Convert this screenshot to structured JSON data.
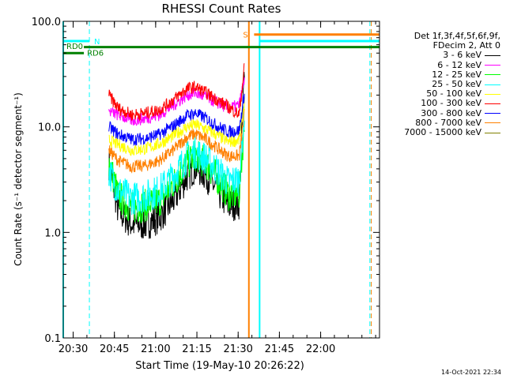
{
  "chart_data": {
    "type": "line",
    "title": "RHESSI Count Rates",
    "xlabel": "Start Time (19-May-10 20:26:22)",
    "ylabel": "Count Rate (s⁻¹ detector segment⁻¹)",
    "y_scale": "log",
    "ylim": [
      0.1,
      100.0
    ],
    "y_ticks": [
      "0.1",
      "1.0",
      "10.0",
      "100.0"
    ],
    "x_ticks": [
      "20:30",
      "20:45",
      "21:00",
      "21:15",
      "21:30",
      "21:45",
      "22:00"
    ],
    "x_unit": "minutes since 20:26:22",
    "xlim": [
      0,
      115
    ],
    "x_tick_values": [
      3.6,
      18.6,
      33.6,
      48.6,
      63.6,
      78.6,
      93.6
    ],
    "legend_header": [
      "Det 1f,3f,4f,5f,6f,9f,",
      "FDecim 2, Att 0"
    ],
    "legend_position": "right",
    "data_start_minute": 16.6,
    "data_end_minute": 66.0,
    "series": [
      {
        "name": "3 - 6 keV",
        "color": "#000000",
        "points": [
          [
            16.6,
            4.5
          ],
          [
            20,
            1.6
          ],
          [
            25,
            1.2
          ],
          [
            30,
            1.2
          ],
          [
            35,
            1.4
          ],
          [
            40,
            2.0
          ],
          [
            45,
            3.4
          ],
          [
            48,
            4.2
          ],
          [
            52,
            3.5
          ],
          [
            56,
            2.5
          ],
          [
            60,
            1.8
          ],
          [
            64,
            1.9
          ],
          [
            66,
            45
          ]
        ]
      },
      {
        "name": "6 - 12 keV",
        "color": "#ff00ff",
        "points": [
          [
            16.6,
            14
          ],
          [
            20,
            13
          ],
          [
            25,
            11.5
          ],
          [
            30,
            12
          ],
          [
            35,
            13
          ],
          [
            40,
            16
          ],
          [
            45,
            20
          ],
          [
            48,
            21
          ],
          [
            52,
            19
          ],
          [
            56,
            17
          ],
          [
            60,
            15
          ],
          [
            64,
            16
          ],
          [
            66,
            30
          ]
        ]
      },
      {
        "name": "12 - 25 keV",
        "color": "#00ff00",
        "points": [
          [
            16.6,
            4.8
          ],
          [
            20,
            2.2
          ],
          [
            25,
            1.7
          ],
          [
            30,
            1.8
          ],
          [
            35,
            2.0
          ],
          [
            40,
            2.9
          ],
          [
            45,
            4.5
          ],
          [
            48,
            5.4
          ],
          [
            52,
            4.5
          ],
          [
            56,
            3.3
          ],
          [
            60,
            2.3
          ],
          [
            64,
            2.3
          ],
          [
            66,
            12
          ]
        ]
      },
      {
        "name": "25 - 50 keV",
        "color": "#00ffff",
        "points": [
          [
            16.6,
            3.8
          ],
          [
            20,
            2.5
          ],
          [
            25,
            2.1
          ],
          [
            30,
            2.2
          ],
          [
            35,
            2.5
          ],
          [
            40,
            3.4
          ],
          [
            45,
            5.2
          ],
          [
            48,
            5.8
          ],
          [
            52,
            5.0
          ],
          [
            56,
            3.9
          ],
          [
            60,
            3.0
          ],
          [
            64,
            3.2
          ],
          [
            66,
            15
          ]
        ]
      },
      {
        "name": "50 - 100 keV",
        "color": "#ffff00",
        "points": [
          [
            16.6,
            7.5
          ],
          [
            20,
            6.8
          ],
          [
            25,
            6.0
          ],
          [
            30,
            6.2
          ],
          [
            35,
            6.9
          ],
          [
            40,
            8.2
          ],
          [
            45,
            10
          ],
          [
            48,
            10.5
          ],
          [
            52,
            9.5
          ],
          [
            56,
            8.3
          ],
          [
            60,
            7.2
          ],
          [
            64,
            7.5
          ],
          [
            66,
            18
          ]
        ]
      },
      {
        "name": "100 - 300 keV",
        "color": "#ff0000",
        "points": [
          [
            16.6,
            20
          ],
          [
            20,
            15
          ],
          [
            25,
            13
          ],
          [
            30,
            13.5
          ],
          [
            35,
            14.5
          ],
          [
            40,
            18
          ],
          [
            45,
            23
          ],
          [
            48,
            24
          ],
          [
            52,
            21
          ],
          [
            56,
            18
          ],
          [
            60,
            15.5
          ],
          [
            64,
            13
          ],
          [
            66,
            40
          ]
        ]
      },
      {
        "name": "300 - 800 keV",
        "color": "#0000ff",
        "points": [
          [
            16.6,
            10
          ],
          [
            20,
            8.5
          ],
          [
            25,
            7.6
          ],
          [
            30,
            7.8
          ],
          [
            35,
            8.5
          ],
          [
            40,
            10.2
          ],
          [
            45,
            12.8
          ],
          [
            48,
            13.5
          ],
          [
            52,
            12
          ],
          [
            56,
            10.2
          ],
          [
            60,
            9.0
          ],
          [
            64,
            9.2
          ],
          [
            66,
            22
          ]
        ]
      },
      {
        "name": "800 - 7000 keV",
        "color": "#ff8000",
        "points": [
          [
            16.6,
            6
          ],
          [
            20,
            4.8
          ],
          [
            25,
            4.2
          ],
          [
            30,
            4.3
          ],
          [
            35,
            4.8
          ],
          [
            40,
            6.0
          ],
          [
            45,
            8.0
          ],
          [
            48,
            8.6
          ],
          [
            52,
            7.6
          ],
          [
            56,
            6.3
          ],
          [
            60,
            5.3
          ],
          [
            64,
            5.3
          ],
          [
            66,
            14
          ]
        ]
      },
      {
        "name": "7000 - 15000 keV",
        "color": "#808000",
        "points": []
      }
    ],
    "annotations": {
      "bars": [
        {
          "label": "N",
          "color": "#00ffff",
          "x": [
            0,
            9.5
          ],
          "y": 65
        },
        {
          "label": "RD0",
          "color": "#008000",
          "x": [
            0,
            7.5
          ],
          "y": 50
        },
        {
          "label": "RD6",
          "color": "#008000",
          "x": [
            7.5,
            115
          ],
          "y": 57
        },
        {
          "label": "S",
          "color": "#ff8000",
          "x": [
            69.4,
            115
          ],
          "y": 75
        },
        {
          "label": "",
          "color": "#00ffff",
          "x": [
            71.4,
            115
          ],
          "y": 65
        }
      ],
      "vlines": [
        {
          "x": 0.0,
          "color": "#00ffff",
          "style": "solid"
        },
        {
          "x": 9.5,
          "color": "#00ffff",
          "style": "dashed"
        },
        {
          "x": 67.5,
          "color": "#ff8000",
          "style": "solid"
        },
        {
          "x": 71.4,
          "color": "#00ffff",
          "style": "solid"
        },
        {
          "x": 111.5,
          "color": "#00ffff",
          "style": "dashed"
        },
        {
          "x": 112.0,
          "color": "#ff8000",
          "style": "dashed"
        }
      ]
    }
  },
  "timestamp": "14-Oct-2021 22:34"
}
